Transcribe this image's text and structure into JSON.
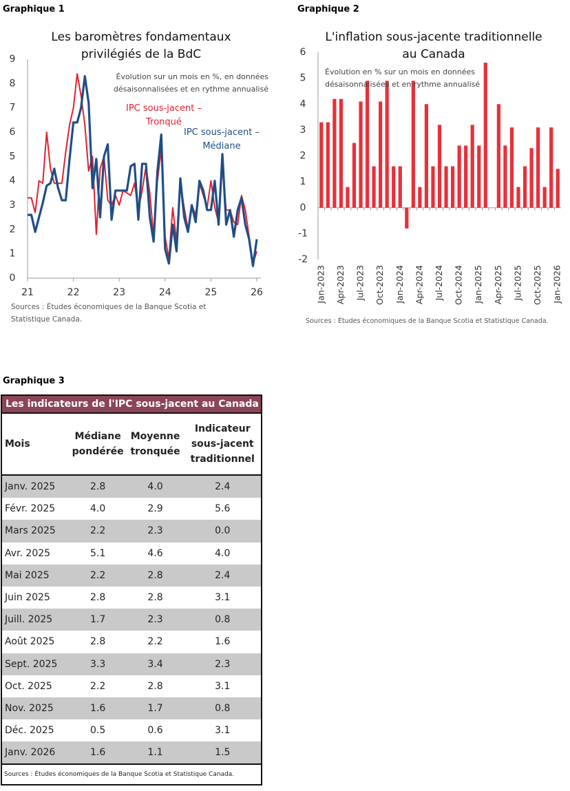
{
  "labels": [
    "Graphique 1",
    "Graphique 2",
    "Graphique 3"
  ],
  "chart_data": [
    {
      "type": "line",
      "title": [
        "Les baromètres fondamentaux",
        "privilégiés de la BdC"
      ],
      "subtitle": [
        "Évolution sur un mois en %, en données",
        "désaisonnalisées et en rythme annualisé"
      ],
      "x": [
        21,
        21.083,
        21.167,
        21.25,
        21.333,
        21.417,
        21.5,
        21.583,
        21.667,
        21.75,
        21.833,
        21.917,
        22,
        22.083,
        22.167,
        22.25,
        22.333,
        22.417,
        22.5,
        22.583,
        22.667,
        22.75,
        22.833,
        22.917,
        23,
        23.083,
        23.167,
        23.25,
        23.333,
        23.417,
        23.5,
        23.583,
        23.667,
        23.75,
        23.833,
        23.917,
        24,
        24.083,
        24.167,
        24.25,
        24.333,
        24.417,
        24.5,
        24.583,
        24.667,
        24.75,
        24.833,
        24.917,
        25,
        25.083,
        25.167,
        25.25,
        25.333,
        25.417,
        25.5,
        25.583,
        25.667,
        25.75,
        25.833,
        25.917,
        26
      ],
      "xlim": [
        21,
        26
      ],
      "xticks": [
        21,
        22,
        23,
        24,
        25,
        26
      ],
      "ylim": [
        0,
        9
      ],
      "yticks": [
        0,
        1,
        2,
        3,
        4,
        5,
        6,
        7,
        8,
        9
      ],
      "series": [
        {
          "name": "IPC sous-jacent – Tronqué",
          "color": "#e4202f",
          "values": [
            3.3,
            3.3,
            2.7,
            4.0,
            3.9,
            6.0,
            4.5,
            3.9,
            3.9,
            3.9,
            5.2,
            6.3,
            7.0,
            8.4,
            7.5,
            6.3,
            4.4,
            5.0,
            1.8,
            4.5,
            5.0,
            3.2,
            3.0,
            3.4,
            3.0,
            3.6,
            3.5,
            3.4,
            3.9,
            2.8,
            3.6,
            4.6,
            3.5,
            1.7,
            4.0,
            5.3,
            1.7,
            0.8,
            2.9,
            1.5,
            3.9,
            2.9,
            2.0,
            3.0,
            2.6,
            3.9,
            3.4,
            2.9,
            4.0,
            2.9,
            2.3,
            4.6,
            2.8,
            2.8,
            2.3,
            2.2,
            3.4,
            2.8,
            1.7,
            0.6,
            1.1
          ]
        },
        {
          "name": "IPC sous-jacent – Médiane",
          "color": "#1f4e86",
          "values": [
            2.6,
            2.6,
            1.9,
            2.5,
            3.1,
            3.8,
            3.9,
            4.5,
            3.7,
            3.2,
            3.2,
            4.9,
            6.4,
            6.4,
            7.0,
            8.3,
            7.2,
            3.7,
            4.9,
            2.5,
            5.0,
            5.5,
            2.4,
            3.6,
            3.6,
            3.6,
            3.6,
            4.6,
            4.7,
            2.4,
            4.7,
            4.7,
            2.5,
            1.5,
            4.4,
            5.9,
            1.2,
            0.6,
            2.2,
            1.1,
            4.1,
            2.5,
            1.9,
            3.0,
            2.3,
            4.0,
            3.6,
            2.8,
            2.8,
            4.0,
            2.2,
            5.1,
            2.2,
            2.8,
            1.7,
            2.8,
            3.3,
            2.2,
            1.6,
            0.5,
            1.6
          ]
        }
      ],
      "source": "Sources : Études économiques de la Banque Scotia et Statistique Canada."
    },
    {
      "type": "bar",
      "title": [
        "L'inflation sous-jacente traditionnelle",
        "au Canada"
      ],
      "subtitle": [
        "Évolution en % sur un mois en données",
        "désaisonnalisées et en rythme annualisé"
      ],
      "categories": [
        "Jan-2023",
        null,
        null,
        "Apr-2023",
        null,
        null,
        "Jul-2023",
        null,
        null,
        "Oct-2023",
        null,
        null,
        "Jan-2024",
        null,
        null,
        "Apr-2024",
        null,
        null,
        "Jul-2024",
        null,
        null,
        "Oct-2024",
        null,
        null,
        "Jan-2025",
        null,
        null,
        "Apr-2025",
        null,
        null,
        "Jul-2025",
        null,
        null,
        "Oct-2025",
        null,
        null,
        "Jan-2026"
      ],
      "values": [
        3.3,
        3.3,
        4.2,
        4.2,
        0.8,
        2.5,
        4.1,
        4.9,
        1.6,
        4.1,
        4.9,
        1.6,
        1.6,
        -0.8,
        4.9,
        0.8,
        4.0,
        1.6,
        3.2,
        1.6,
        1.6,
        2.4,
        2.4,
        3.2,
        2.4,
        5.6,
        0.0,
        4.0,
        2.4,
        3.1,
        0.8,
        1.6,
        2.3,
        3.1,
        0.8,
        3.1,
        1.5
      ],
      "color": "#e8303a",
      "ylim": [
        -2,
        6
      ],
      "yticks": [
        -2,
        -1,
        0,
        1,
        2,
        3,
        4,
        5,
        6
      ],
      "source": "Sources : Études économiques de la Banque Scotia et Statistique Canada."
    }
  ],
  "table": {
    "title": "Les indicateurs de l'IPC sous-jacent au Canada",
    "columns": [
      "Mois",
      "Médiane pondérée",
      "Moyenne tronquée",
      "Indicateur sous-jacent traditionnel"
    ],
    "rows": [
      [
        "Janv. 2025",
        "2.8",
        "4.0",
        "2.4"
      ],
      [
        "Févr. 2025",
        "4.0",
        "2.9",
        "5.6"
      ],
      [
        "Mars 2025",
        "2.2",
        "2.3",
        "0.0"
      ],
      [
        "Avr. 2025",
        "5.1",
        "4.6",
        "4.0"
      ],
      [
        "Mai 2025",
        "2.2",
        "2.8",
        "2.4"
      ],
      [
        "Juin 2025",
        "2.8",
        "2.8",
        "3.1"
      ],
      [
        "Juill. 2025",
        "1.7",
        "2.3",
        "0.8"
      ],
      [
        "Août 2025",
        "2.8",
        "2.2",
        "1.6"
      ],
      [
        "Sept. 2025",
        "3.3",
        "3.4",
        "2.3"
      ],
      [
        "Oct. 2025",
        "2.2",
        "2.8",
        "3.1"
      ],
      [
        "Nov. 2025",
        "1.6",
        "1.7",
        "0.8"
      ],
      [
        "Déc. 2025",
        "0.5",
        "0.6",
        "3.1"
      ],
      [
        "Janv. 2026",
        "1.6",
        "1.1",
        "1.5"
      ]
    ],
    "source": "Sources : Études économiques de la Banque Scotia et Statistique Canada."
  }
}
